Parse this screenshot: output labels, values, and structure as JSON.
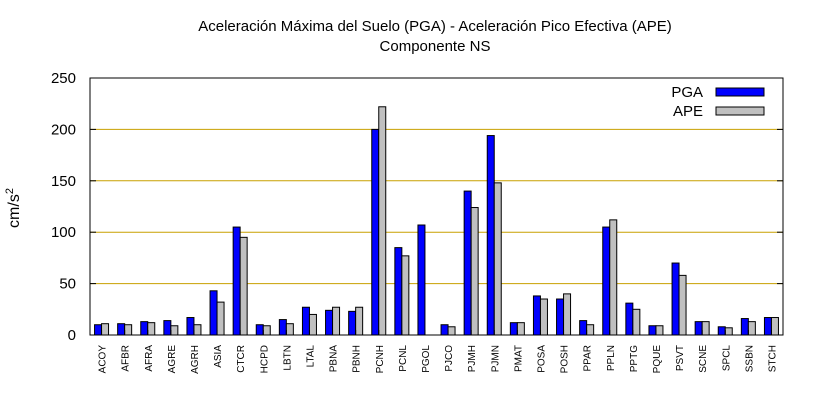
{
  "chart_data": {
    "type": "bar",
    "title": "Aceleración Máxima del Suelo (PGA) -  Aceleración Pico Efectiva (APE)",
    "subtitle": "Componente NS",
    "xlabel": "",
    "ylabel": "cm/s",
    "ylabel_sup": "2",
    "ylim": [
      0,
      250
    ],
    "yticks": [
      0,
      50,
      100,
      150,
      200,
      250
    ],
    "grid": "horizontal",
    "legend_position": "top-right",
    "categories": [
      "ACOY",
      "AFBR",
      "AFRA",
      "AGRE",
      "AGRH",
      "ASIA",
      "CTCR",
      "HCPD",
      "LBTN",
      "LTAL",
      "PBNA",
      "PBNH",
      "PCNH",
      "PCNL",
      "PGOL",
      "PJCO",
      "PJMH",
      "PJMN",
      "PMAT",
      "POSA",
      "POSH",
      "PPAR",
      "PPLN",
      "PPTG",
      "PQUE",
      "PSVT",
      "SCNE",
      "SPCL",
      "SSBN",
      "STCH"
    ],
    "series": [
      {
        "name": "PGA",
        "color": "#0000ff",
        "values": [
          10,
          11,
          13,
          14,
          17,
          43,
          105,
          10,
          15,
          27,
          24,
          23,
          200,
          85,
          107,
          10,
          140,
          194,
          12,
          38,
          35,
          14,
          105,
          31,
          9,
          70,
          13,
          8,
          16,
          17
        ]
      },
      {
        "name": "APE",
        "color": "#c0c0c0",
        "values": [
          11,
          10,
          12,
          9,
          10,
          32,
          95,
          9,
          11,
          20,
          27,
          27,
          222,
          77,
          0,
          8,
          124,
          148,
          12,
          35,
          40,
          10,
          112,
          25,
          9,
          58,
          13,
          7,
          13,
          17
        ]
      }
    ],
    "colors": {
      "grid": "#c8a000",
      "axis": "#000000"
    }
  }
}
